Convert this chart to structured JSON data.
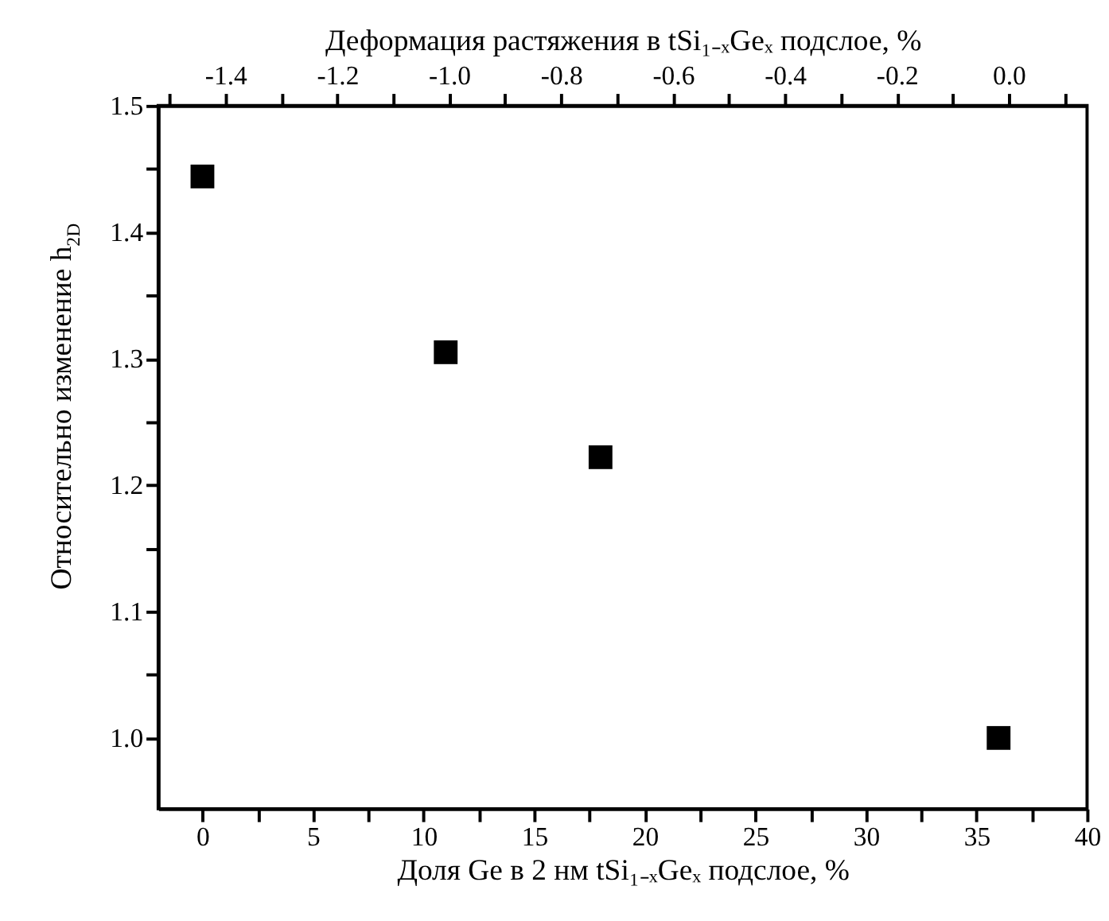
{
  "chart_data": {
    "type": "scatter",
    "xlabel": "Доля Ge в 2 нм tSi₁₋ₓGeₓ подслое, %",
    "x2label": "Деформация растяжения в tSi₁₋ₓGeₓ подслое, %",
    "ylabel": "Относительно изменение h$_{2D}$",
    "x": [
      0,
      11,
      18,
      36
    ],
    "series": [
      {
        "color": "#000000",
        "values": [
          1.444,
          1.305,
          1.222,
          1.0
        ]
      }
    ],
    "marker": "square",
    "xlim": [
      -2,
      40
    ],
    "xticks": [
      0,
      {
        "value": 2.5,
        "label": null
      },
      5,
      {
        "value": 7.5,
        "label": null
      },
      10,
      {
        "value": 12.5,
        "label": null
      },
      15,
      {
        "value": 17.5,
        "label": null
      },
      20,
      {
        "value": 22.5,
        "label": null
      },
      25,
      {
        "value": 27.5,
        "label": null
      },
      30,
      {
        "value": 32.5,
        "label": null
      },
      35,
      {
        "value": 37.5,
        "label": null
      },
      40
    ],
    "x2lim": [
      -1.52,
      0.14
    ],
    "x2ticks": [
      {
        "value": -1.5,
        "label": null
      },
      {
        "value": -1.4,
        "label": "-1.4"
      },
      {
        "value": -1.3,
        "label": null
      },
      {
        "value": -1.2,
        "label": "-1.2"
      },
      {
        "value": -1.1,
        "label": null
      },
      {
        "value": -1.0,
        "label": "-1.0"
      },
      {
        "value": -0.9,
        "label": null
      },
      {
        "value": -0.8,
        "label": "-0.8"
      },
      {
        "value": -0.7,
        "label": null
      },
      {
        "value": -0.6,
        "label": "-0.6"
      },
      {
        "value": -0.5,
        "label": null
      },
      {
        "value": -0.4,
        "label": "-0.4"
      },
      {
        "value": -0.3,
        "label": null
      },
      {
        "value": -0.2,
        "label": "-0.2"
      },
      {
        "value": -0.1,
        "label": null
      },
      {
        "value": 0.0,
        "label": "0.0"
      },
      {
        "value": 0.1,
        "label": null
      }
    ],
    "ylim": [
      0.944,
      1.5
    ],
    "yticks": [
      {
        "value": 1.0,
        "label": "1.0"
      },
      {
        "value": 1.05,
        "label": null
      },
      1.1,
      {
        "value": 1.15,
        "label": null
      },
      1.2,
      {
        "value": 1.25,
        "label": null
      },
      1.3,
      {
        "value": 1.35,
        "label": null
      },
      1.4,
      {
        "value": 1.45,
        "label": null
      },
      1.5
    ],
    "grid": false
  }
}
